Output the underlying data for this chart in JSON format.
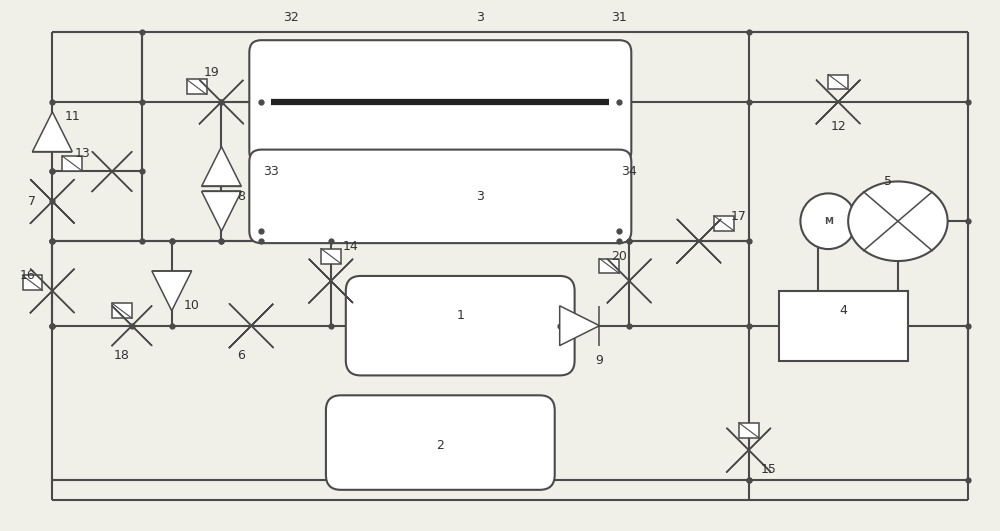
{
  "bg_color": "#f0efe8",
  "line_color": "#4a4a4a",
  "lw": 1.5,
  "lw_thin": 1.1,
  "fig_width": 10.0,
  "fig_height": 5.31
}
